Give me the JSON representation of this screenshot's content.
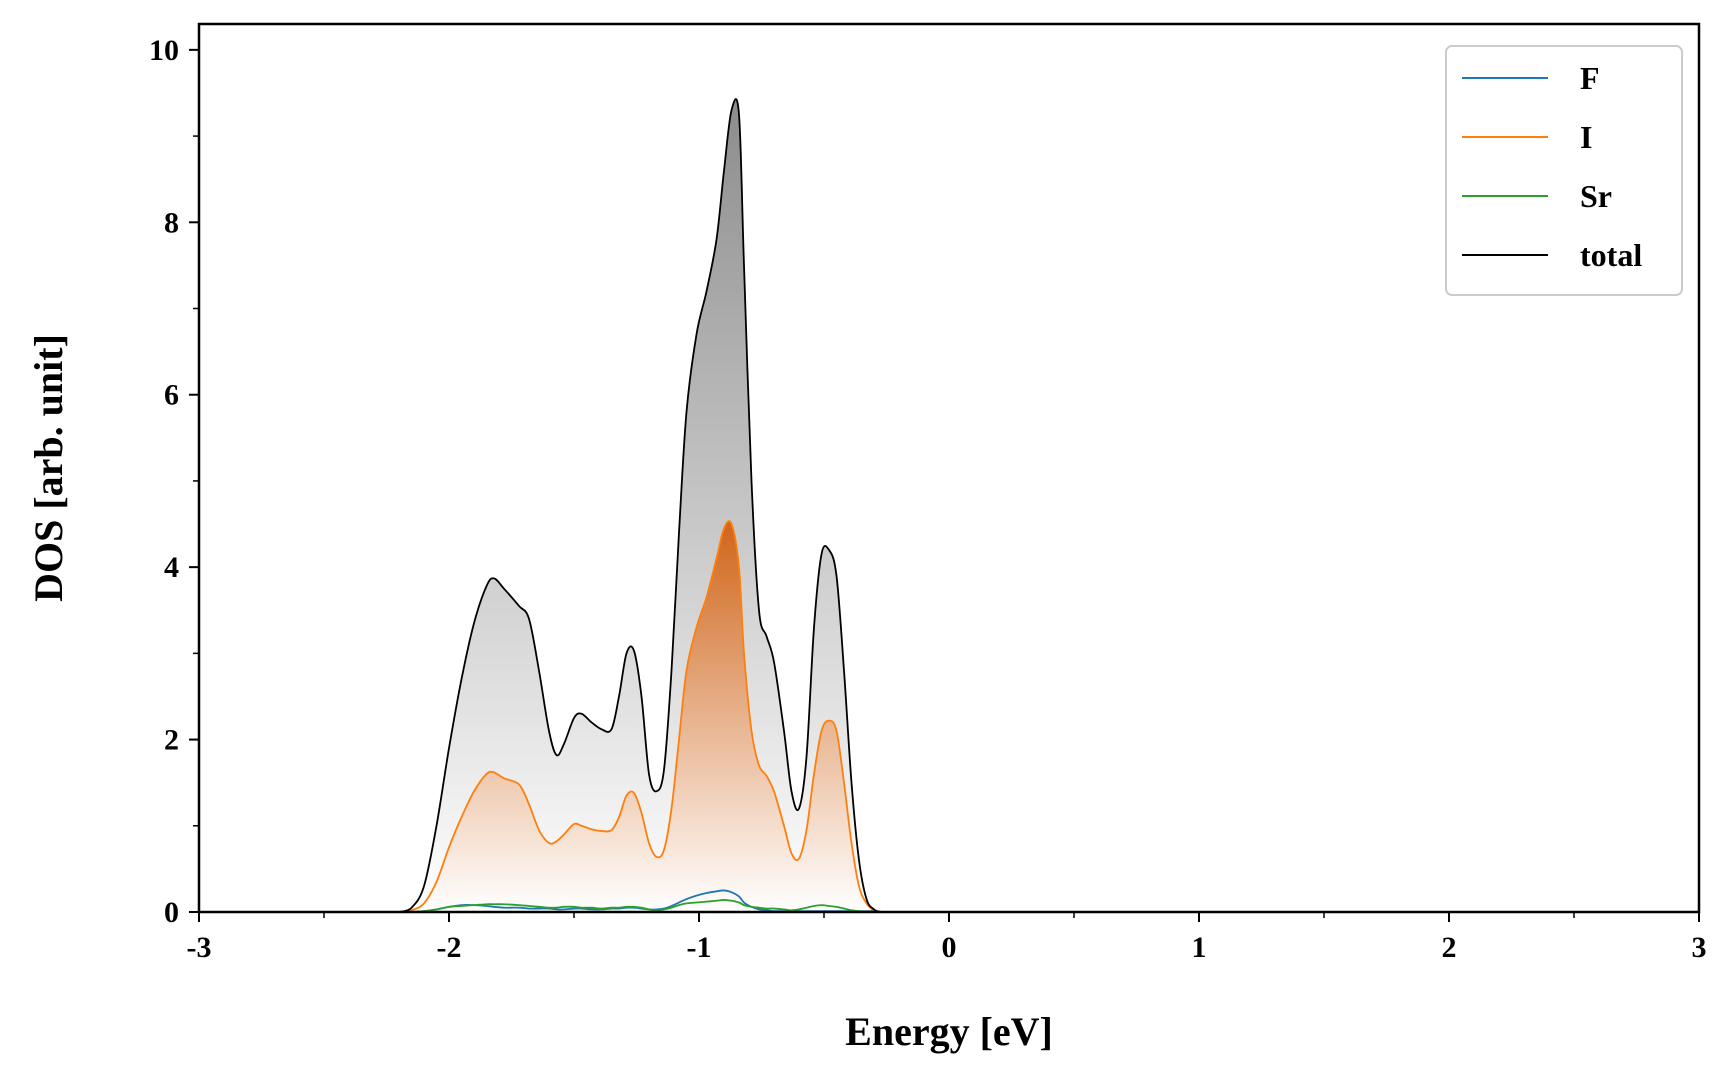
{
  "chart_data": {
    "type": "area",
    "title": "",
    "xlabel": "Energy [eV]",
    "ylabel": "DOS [arb. unit]",
    "xlim": [
      -3,
      3
    ],
    "ylim": [
      0,
      10.3
    ],
    "x_ticks": [
      -3,
      -2,
      -1,
      0,
      1,
      2,
      3
    ],
    "x_tick_labels": [
      "-3",
      "-2",
      "-1",
      "0",
      "1",
      "2",
      "3"
    ],
    "y_ticks": [
      0,
      2,
      4,
      6,
      8,
      10
    ],
    "y_tick_labels": [
      "0",
      "2",
      "4",
      "6",
      "8",
      "10"
    ],
    "grid": false,
    "legend_position": "top-right",
    "x": [
      -2.2,
      -2.15,
      -2.1,
      -2.05,
      -2.0,
      -1.95,
      -1.9,
      -1.85,
      -1.82,
      -1.78,
      -1.72,
      -1.68,
      -1.64,
      -1.6,
      -1.57,
      -1.54,
      -1.5,
      -1.47,
      -1.43,
      -1.39,
      -1.35,
      -1.32,
      -1.29,
      -1.26,
      -1.23,
      -1.2,
      -1.17,
      -1.14,
      -1.11,
      -1.08,
      -1.05,
      -1.01,
      -0.97,
      -0.93,
      -0.9,
      -0.87,
      -0.84,
      -0.82,
      -0.79,
      -0.76,
      -0.73,
      -0.7,
      -0.66,
      -0.63,
      -0.6,
      -0.57,
      -0.54,
      -0.51,
      -0.48,
      -0.45,
      -0.42,
      -0.39,
      -0.36,
      -0.33,
      -0.3,
      -0.27,
      -0.24,
      -0.21,
      -0.18,
      -0.15,
      -0.1,
      0.0,
      1.0,
      2.0,
      3.0
    ],
    "series": [
      {
        "name": "F",
        "color": "#1f77b4",
        "values": [
          0,
          0,
          0.01,
          0.03,
          0.06,
          0.08,
          0.08,
          0.07,
          0.06,
          0.05,
          0.05,
          0.04,
          0.04,
          0.04,
          0.03,
          0.03,
          0.04,
          0.04,
          0.03,
          0.03,
          0.04,
          0.04,
          0.05,
          0.05,
          0.04,
          0.03,
          0.03,
          0.04,
          0.07,
          0.11,
          0.15,
          0.19,
          0.22,
          0.24,
          0.25,
          0.23,
          0.18,
          0.11,
          0.06,
          0.03,
          0.02,
          0.01,
          0.01,
          0.01,
          0.01,
          0.01,
          0.01,
          0.01,
          0.01,
          0.01,
          0.01,
          0.01,
          0.01,
          0.01,
          0.01,
          0,
          0,
          0,
          0,
          0,
          0,
          0,
          0,
          0,
          0
        ]
      },
      {
        "name": "I",
        "color": "#ff7f0e",
        "values": [
          0,
          0.02,
          0.1,
          0.35,
          0.75,
          1.1,
          1.4,
          1.6,
          1.62,
          1.55,
          1.48,
          1.25,
          0.95,
          0.8,
          0.82,
          0.9,
          1.02,
          1.0,
          0.96,
          0.94,
          0.95,
          1.1,
          1.35,
          1.38,
          1.15,
          0.8,
          0.64,
          0.72,
          1.2,
          2.0,
          2.8,
          3.3,
          3.65,
          4.1,
          4.45,
          4.5,
          4.0,
          3.0,
          2.1,
          1.7,
          1.58,
          1.4,
          1.0,
          0.68,
          0.62,
          0.95,
          1.6,
          2.1,
          2.22,
          2.1,
          1.5,
          0.8,
          0.3,
          0.1,
          0.02,
          0,
          0,
          0,
          0,
          0,
          0,
          0,
          0,
          0,
          0
        ]
      },
      {
        "name": "Sr",
        "color": "#2ca02c",
        "values": [
          0,
          0,
          0.01,
          0.03,
          0.06,
          0.07,
          0.08,
          0.09,
          0.09,
          0.09,
          0.08,
          0.07,
          0.06,
          0.05,
          0.05,
          0.06,
          0.06,
          0.05,
          0.05,
          0.04,
          0.05,
          0.05,
          0.06,
          0.06,
          0.05,
          0.03,
          0.02,
          0.03,
          0.05,
          0.08,
          0.1,
          0.11,
          0.12,
          0.13,
          0.14,
          0.13,
          0.11,
          0.08,
          0.06,
          0.05,
          0.04,
          0.04,
          0.03,
          0.02,
          0.03,
          0.05,
          0.07,
          0.08,
          0.07,
          0.06,
          0.04,
          0.02,
          0.01,
          0,
          0,
          0,
          0,
          0,
          0,
          0,
          0,
          0,
          0,
          0,
          0
        ]
      },
      {
        "name": "total",
        "color": "#000000",
        "values": [
          0,
          0.05,
          0.3,
          1.0,
          1.9,
          2.7,
          3.35,
          3.78,
          3.87,
          3.75,
          3.55,
          3.4,
          2.8,
          2.1,
          1.82,
          1.95,
          2.25,
          2.3,
          2.2,
          2.12,
          2.12,
          2.5,
          3.0,
          3.03,
          2.5,
          1.6,
          1.4,
          1.65,
          2.8,
          4.4,
          5.8,
          6.7,
          7.2,
          7.8,
          8.6,
          9.3,
          9.25,
          7.5,
          5.0,
          3.5,
          3.2,
          2.9,
          2.1,
          1.4,
          1.2,
          1.8,
          3.3,
          4.15,
          4.2,
          3.9,
          2.8,
          1.5,
          0.6,
          0.15,
          0.03,
          0,
          0,
          0,
          0,
          0,
          0,
          0,
          0,
          0,
          0
        ]
      }
    ]
  }
}
